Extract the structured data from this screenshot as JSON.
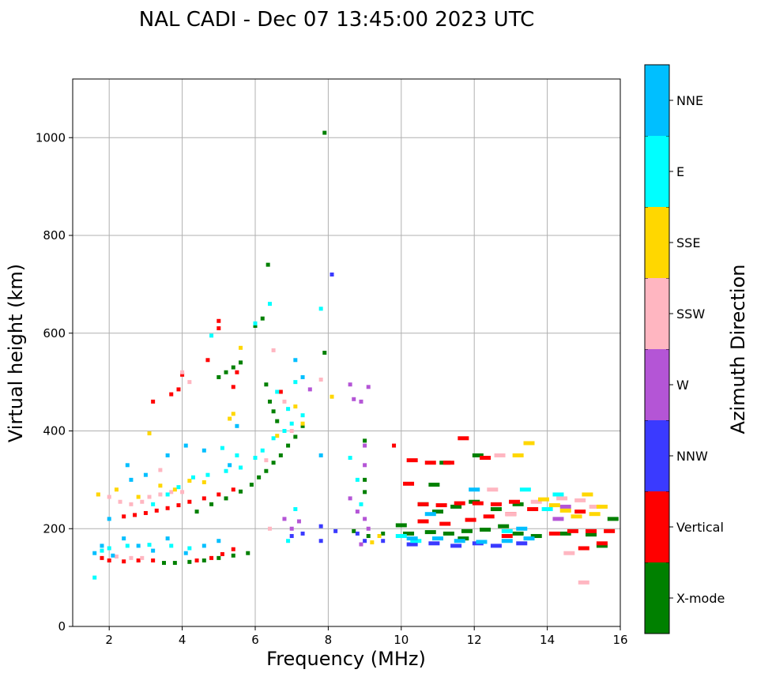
{
  "chart_data": {
    "type": "scatter",
    "title": "NAL CADI - Dec 07 13:45:00 2023 UTC",
    "xlabel": "Frequency (MHz)",
    "ylabel": "Virtual height (km)",
    "xlim": [
      1,
      16
    ],
    "ylim": [
      0,
      1120
    ],
    "xticks": [
      "2",
      "4",
      "6",
      "8",
      "10",
      "12",
      "14",
      "16"
    ],
    "yticks": [
      "0",
      "200",
      "400",
      "600",
      "800",
      "1000"
    ],
    "grid": true,
    "colorbar": {
      "label": "Azimuth Direction",
      "categories": [
        {
          "name": "X-mode",
          "color": "#008000"
        },
        {
          "name": "Vertical",
          "color": "#ff0000"
        },
        {
          "name": "NNW",
          "color": "#3a3aff"
        },
        {
          "name": "W",
          "color": "#b455d6"
        },
        {
          "name": "SSW",
          "color": "#ffb6c1"
        },
        {
          "name": "SSE",
          "color": "#ffd700"
        },
        {
          "name": "E",
          "color": "#00ffff"
        },
        {
          "name": "NNE",
          "color": "#00bfff"
        }
      ]
    },
    "series": [
      {
        "name": "X-mode",
        "points": [
          [
            3.5,
            130
          ],
          [
            3.8,
            130
          ],
          [
            4.2,
            132
          ],
          [
            4.6,
            135
          ],
          [
            5.0,
            140
          ],
          [
            5.4,
            145
          ],
          [
            5.8,
            150
          ],
          [
            4.4,
            235
          ],
          [
            4.8,
            250
          ],
          [
            5.2,
            262
          ],
          [
            5.6,
            276
          ],
          [
            5.9,
            290
          ],
          [
            6.1,
            305
          ],
          [
            6.3,
            318
          ],
          [
            6.5,
            335
          ],
          [
            6.7,
            350
          ],
          [
            6.9,
            370
          ],
          [
            7.1,
            388
          ],
          [
            7.3,
            410
          ],
          [
            6.3,
            495
          ],
          [
            6.4,
            460
          ],
          [
            6.5,
            440
          ],
          [
            6.6,
            420
          ],
          [
            5.0,
            510
          ],
          [
            5.2,
            520
          ],
          [
            5.4,
            530
          ],
          [
            5.6,
            540
          ],
          [
            6.0,
            615
          ],
          [
            6.2,
            630
          ],
          [
            6.35,
            740
          ],
          [
            7.9,
            1010
          ],
          [
            7.9,
            560
          ],
          [
            9.0,
            380
          ],
          [
            9.0,
            300
          ],
          [
            9.0,
            275
          ],
          [
            8.7,
            195
          ],
          [
            9.1,
            185
          ],
          [
            9.5,
            190
          ],
          [
            10.2,
            190
          ],
          [
            10.8,
            193
          ],
          [
            11.3,
            190
          ],
          [
            11.8,
            195
          ],
          [
            12.3,
            198
          ],
          [
            12.8,
            205
          ],
          [
            13.2,
            190
          ],
          [
            13.7,
            185
          ],
          [
            14.5,
            190
          ],
          [
            15.2,
            188
          ],
          [
            15.8,
            220
          ],
          [
            15.5,
            165
          ],
          [
            12.0,
            255
          ],
          [
            12.6,
            240
          ],
          [
            13.2,
            250
          ],
          [
            10.6,
            250
          ],
          [
            11.0,
            235
          ],
          [
            11.5,
            245
          ],
          [
            11.2,
            335
          ],
          [
            12.1,
            350
          ],
          [
            10.0,
            207
          ],
          [
            10.9,
            290
          ],
          [
            11.7,
            180
          ]
        ]
      },
      {
        "name": "Vertical",
        "points": [
          [
            1.8,
            140
          ],
          [
            2.0,
            135
          ],
          [
            2.4,
            133
          ],
          [
            2.8,
            135
          ],
          [
            3.2,
            135
          ],
          [
            4.4,
            135
          ],
          [
            4.8,
            140
          ],
          [
            5.1,
            148
          ],
          [
            5.4,
            158
          ],
          [
            2.4,
            225
          ],
          [
            2.7,
            228
          ],
          [
            3.0,
            232
          ],
          [
            3.3,
            237
          ],
          [
            3.6,
            242
          ],
          [
            3.9,
            248
          ],
          [
            4.2,
            255
          ],
          [
            4.6,
            262
          ],
          [
            5.0,
            270
          ],
          [
            5.4,
            280
          ],
          [
            3.7,
            475
          ],
          [
            3.9,
            485
          ],
          [
            4.0,
            515
          ],
          [
            3.2,
            460
          ],
          [
            4.7,
            545
          ],
          [
            5.0,
            610
          ],
          [
            5.0,
            625
          ],
          [
            5.4,
            490
          ],
          [
            5.5,
            520
          ],
          [
            6.7,
            480
          ],
          [
            9.8,
            370
          ],
          [
            10.3,
            340
          ],
          [
            10.8,
            335
          ],
          [
            11.3,
            335
          ],
          [
            11.7,
            385
          ],
          [
            12.3,
            345
          ],
          [
            10.2,
            292
          ],
          [
            10.6,
            250
          ],
          [
            11.1,
            248
          ],
          [
            11.6,
            252
          ],
          [
            12.1,
            252
          ],
          [
            12.6,
            250
          ],
          [
            13.1,
            255
          ],
          [
            10.6,
            215
          ],
          [
            11.2,
            210
          ],
          [
            11.9,
            218
          ],
          [
            12.4,
            225
          ],
          [
            13.0,
            230
          ],
          [
            13.6,
            240
          ],
          [
            14.2,
            190
          ],
          [
            14.7,
            195
          ],
          [
            15.2,
            195
          ],
          [
            15.7,
            195
          ],
          [
            12.9,
            185
          ],
          [
            15.0,
            160
          ],
          [
            15.5,
            170
          ],
          [
            14.9,
            235
          ]
        ]
      },
      {
        "name": "NNW",
        "points": [
          [
            8.1,
            720
          ],
          [
            8.8,
            190
          ],
          [
            9.0,
            175
          ],
          [
            9.5,
            175
          ],
          [
            10.3,
            168
          ],
          [
            10.9,
            170
          ],
          [
            11.5,
            165
          ],
          [
            12.1,
            170
          ],
          [
            12.6,
            165
          ],
          [
            13.3,
            170
          ],
          [
            7.8,
            205
          ],
          [
            8.2,
            195
          ],
          [
            7.0,
            185
          ],
          [
            7.3,
            190
          ],
          [
            7.8,
            175
          ]
        ]
      },
      {
        "name": "W",
        "points": [
          [
            8.6,
            495
          ],
          [
            8.9,
            460
          ],
          [
            9.1,
            490
          ],
          [
            8.7,
            465
          ],
          [
            8.6,
            262
          ],
          [
            8.8,
            235
          ],
          [
            9.0,
            220
          ],
          [
            9.1,
            200
          ],
          [
            9.0,
            370
          ],
          [
            9.0,
            330
          ],
          [
            6.8,
            220
          ],
          [
            7.0,
            200
          ],
          [
            7.2,
            215
          ],
          [
            7.5,
            485
          ],
          [
            14.5,
            245
          ],
          [
            14.3,
            220
          ],
          [
            8.9,
            168
          ]
        ]
      },
      {
        "name": "SSW",
        "points": [
          [
            1.7,
            270
          ],
          [
            2.0,
            265
          ],
          [
            2.3,
            255
          ],
          [
            2.6,
            250
          ],
          [
            2.9,
            255
          ],
          [
            3.1,
            265
          ],
          [
            3.4,
            270
          ],
          [
            3.7,
            275
          ],
          [
            4.0,
            275
          ],
          [
            2.2,
            143
          ],
          [
            2.6,
            140
          ],
          [
            2.9,
            140
          ],
          [
            3.4,
            320
          ],
          [
            4.2,
            500
          ],
          [
            4.0,
            520
          ],
          [
            6.3,
            340
          ],
          [
            6.5,
            565
          ],
          [
            6.8,
            460
          ],
          [
            6.4,
            200
          ],
          [
            7.0,
            400
          ],
          [
            12.7,
            350
          ],
          [
            12.5,
            280
          ],
          [
            13.0,
            230
          ],
          [
            13.7,
            255
          ],
          [
            14.4,
            262
          ],
          [
            14.9,
            258
          ],
          [
            15.3,
            245
          ],
          [
            14.6,
            150
          ],
          [
            15.0,
            90
          ],
          [
            7.8,
            505
          ]
        ]
      },
      {
        "name": "SSE",
        "points": [
          [
            1.7,
            270
          ],
          [
            2.2,
            280
          ],
          [
            2.8,
            265
          ],
          [
            3.1,
            395
          ],
          [
            3.4,
            288
          ],
          [
            3.8,
            280
          ],
          [
            4.2,
            298
          ],
          [
            4.6,
            295
          ],
          [
            5.3,
            425
          ],
          [
            5.6,
            570
          ],
          [
            5.4,
            435
          ],
          [
            6.6,
            390
          ],
          [
            7.1,
            450
          ],
          [
            7.3,
            415
          ],
          [
            8.1,
            470
          ],
          [
            9.4,
            185
          ],
          [
            13.2,
            350
          ],
          [
            13.5,
            375
          ],
          [
            14.2,
            248
          ],
          [
            14.5,
            237
          ],
          [
            14.8,
            225
          ],
          [
            15.1,
            270
          ],
          [
            15.5,
            245
          ],
          [
            15.3,
            230
          ],
          [
            13.9,
            260
          ],
          [
            9.2,
            172
          ]
        ]
      },
      {
        "name": "E",
        "points": [
          [
            1.6,
            100
          ],
          [
            1.8,
            155
          ],
          [
            2.0,
            160
          ],
          [
            2.5,
            165
          ],
          [
            3.1,
            167
          ],
          [
            3.7,
            165
          ],
          [
            4.2,
            160
          ],
          [
            3.2,
            250
          ],
          [
            3.6,
            270
          ],
          [
            3.9,
            285
          ],
          [
            4.3,
            305
          ],
          [
            4.7,
            310
          ],
          [
            5.2,
            318
          ],
          [
            5.6,
            325
          ],
          [
            6.0,
            345
          ],
          [
            6.2,
            360
          ],
          [
            6.5,
            385
          ],
          [
            6.8,
            400
          ],
          [
            7.0,
            415
          ],
          [
            7.3,
            432
          ],
          [
            5.1,
            365
          ],
          [
            5.5,
            350
          ],
          [
            4.8,
            595
          ],
          [
            6.0,
            620
          ],
          [
            6.4,
            660
          ],
          [
            6.6,
            480
          ],
          [
            6.9,
            445
          ],
          [
            7.1,
            500
          ],
          [
            8.6,
            345
          ],
          [
            8.8,
            300
          ],
          [
            8.9,
            250
          ],
          [
            7.1,
            240
          ],
          [
            7.8,
            650
          ],
          [
            10.0,
            185
          ],
          [
            10.4,
            175
          ],
          [
            13.4,
            280
          ],
          [
            14.0,
            240
          ],
          [
            14.3,
            270
          ],
          [
            12.9,
            195
          ],
          [
            6.9,
            175
          ]
        ]
      },
      {
        "name": "NNE",
        "points": [
          [
            1.6,
            150
          ],
          [
            1.8,
            165
          ],
          [
            2.1,
            145
          ],
          [
            2.4,
            180
          ],
          [
            2.8,
            165
          ],
          [
            3.2,
            155
          ],
          [
            3.6,
            180
          ],
          [
            4.1,
            150
          ],
          [
            4.6,
            165
          ],
          [
            5.0,
            175
          ],
          [
            2.6,
            300
          ],
          [
            3.0,
            310
          ],
          [
            3.6,
            350
          ],
          [
            4.1,
            370
          ],
          [
            4.6,
            360
          ],
          [
            5.3,
            330
          ],
          [
            2.0,
            220
          ],
          [
            2.5,
            330
          ],
          [
            5.5,
            410
          ],
          [
            7.1,
            545
          ],
          [
            7.3,
            510
          ],
          [
            7.8,
            350
          ],
          [
            10.3,
            180
          ],
          [
            11.0,
            180
          ],
          [
            11.6,
            175
          ],
          [
            12.2,
            173
          ],
          [
            12.9,
            175
          ],
          [
            13.5,
            180
          ],
          [
            10.8,
            230
          ],
          [
            12.0,
            280
          ],
          [
            13.3,
            200
          ]
        ]
      }
    ]
  }
}
